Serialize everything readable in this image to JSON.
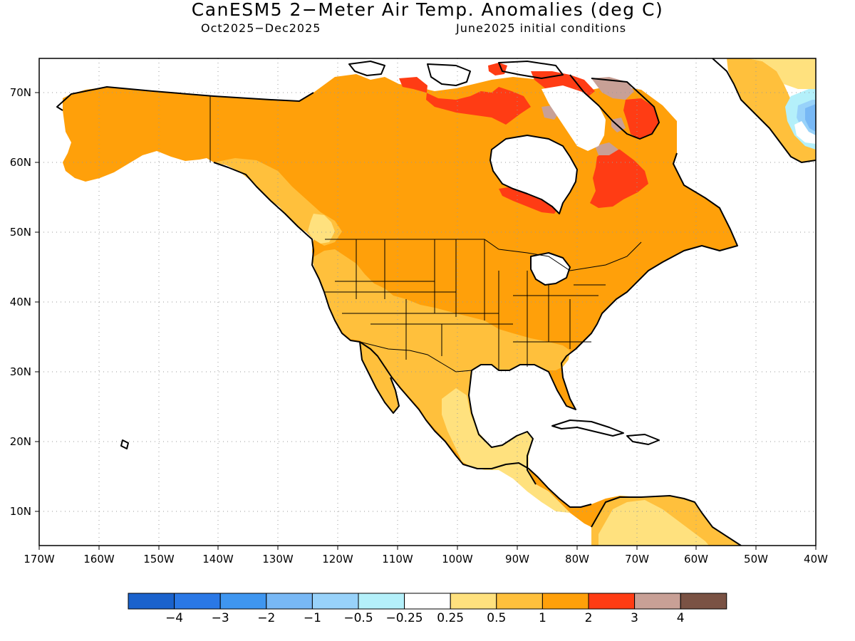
{
  "title": "CanESM5 2−Meter Air Temp. Anomalies (deg C)",
  "period": "Oct2025−Dec2025",
  "initial_conditions": "June2025 initial conditions",
  "lon_labels": [
    "170W",
    "160W",
    "150W",
    "140W",
    "130W",
    "120W",
    "110W",
    "100W",
    "90W",
    "80W",
    "70W",
    "60W",
    "50W",
    "40W"
  ],
  "lat_labels": [
    "70N",
    "60N",
    "50N",
    "40N",
    "30N",
    "20N",
    "10N"
  ],
  "colorbar": {
    "colors": [
      "#1a62cc",
      "#2a78e6",
      "#3f96f0",
      "#78b8f5",
      "#98d2fa",
      "#b4f0fa",
      "#ffffff",
      "#ffe17e",
      "#ffc03c",
      "#ffa00a",
      "#ff3c14",
      "#c8a096",
      "#7a5244"
    ],
    "labels": [
      "−4",
      "−3",
      "−2",
      "−1",
      "−0.5",
      "−0.25",
      "0.25",
      "0.5",
      "1",
      "2",
      "3",
      "4"
    ]
  },
  "legend": {
    "-4": "#1a62cc",
    "-3": "#2a78e6",
    "-2": "#3f96f0",
    "-1": "#78b8f5",
    "-0.5": "#98d2fa",
    "-0.25": "#b4f0fa",
    "0.25": "#ffffff",
    "0.5": "#ffe17e",
    "1": "#ffc03c",
    "2": "#ffa00a",
    "3": "#ff3c14",
    "4": "#c8a096"
  }
}
